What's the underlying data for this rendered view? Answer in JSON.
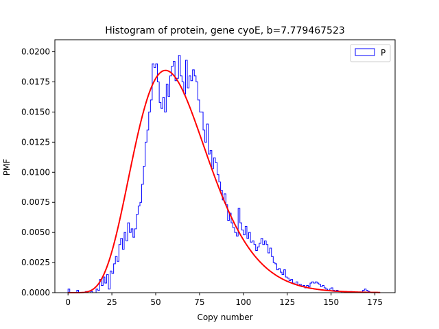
{
  "chart_data": {
    "type": "histogram",
    "title": "Histogram of protein, gene cyoE, b=7.779467523",
    "xlabel": "Copy number",
    "ylabel": "PMF",
    "xlim": [
      -7.5,
      186.5
    ],
    "ylim": [
      0,
      0.021
    ],
    "xticks": [
      0,
      25,
      50,
      75,
      100,
      125,
      150,
      175
    ],
    "yticks": [
      0.0,
      0.0025,
      0.005,
      0.0075,
      0.01,
      0.0125,
      0.015,
      0.0175,
      0.02
    ],
    "ytick_labels": [
      "0.0000",
      "0.0025",
      "0.0050",
      "0.0075",
      "0.0100",
      "0.0125",
      "0.0150",
      "0.0175",
      "0.0200"
    ],
    "legend": {
      "position": "upper right",
      "entries": [
        {
          "label": "P",
          "color": "#0000ff",
          "style": "step"
        }
      ]
    },
    "series": [
      {
        "name": "P",
        "kind": "step",
        "color": "#0000ff",
        "bin_width": 1,
        "points": [
          [
            0,
            0.0003
          ],
          [
            1,
            0.0
          ],
          [
            5,
            0.0002
          ],
          [
            6,
            0.0
          ],
          [
            10,
            0.0001
          ],
          [
            11,
            0.0
          ],
          [
            13,
            0.0001
          ],
          [
            14,
            0.0
          ],
          [
            16,
            0.0003
          ],
          [
            17,
            0.0002
          ],
          [
            18,
            0.0011
          ],
          [
            19,
            0.0006
          ],
          [
            20,
            0.0013
          ],
          [
            21,
            0.0008
          ],
          [
            22,
            0.0015
          ],
          [
            23,
            0.0003
          ],
          [
            24,
            0.0018
          ],
          [
            25,
            0.0016
          ],
          [
            26,
            0.0024
          ],
          [
            27,
            0.003
          ],
          [
            28,
            0.0026
          ],
          [
            29,
            0.004
          ],
          [
            30,
            0.0045
          ],
          [
            31,
            0.0036
          ],
          [
            32,
            0.005
          ],
          [
            33,
            0.0043
          ],
          [
            34,
            0.0058
          ],
          [
            35,
            0.005
          ],
          [
            36,
            0.0053
          ],
          [
            37,
            0.0046
          ],
          [
            38,
            0.0053
          ],
          [
            39,
            0.0065
          ],
          [
            40,
            0.0072
          ],
          [
            41,
            0.0075
          ],
          [
            42,
            0.009
          ],
          [
            43,
            0.0105
          ],
          [
            44,
            0.0125
          ],
          [
            45,
            0.0135
          ],
          [
            46,
            0.015
          ],
          [
            47,
            0.016
          ],
          [
            48,
            0.019
          ],
          [
            49,
            0.0187
          ],
          [
            50,
            0.019
          ],
          [
            51,
            0.0175
          ],
          [
            52,
            0.0158
          ],
          [
            53,
            0.0153
          ],
          [
            54,
            0.0162
          ],
          [
            55,
            0.015
          ],
          [
            56,
            0.0173
          ],
          [
            57,
            0.0163
          ],
          [
            58,
            0.018
          ],
          [
            59,
            0.0188
          ],
          [
            60,
            0.0192
          ],
          [
            61,
            0.0176
          ],
          [
            62,
            0.0178
          ],
          [
            63,
            0.0197
          ],
          [
            64,
            0.018
          ],
          [
            65,
            0.0175
          ],
          [
            66,
            0.0165
          ],
          [
            67,
            0.0193
          ],
          [
            68,
            0.017
          ],
          [
            69,
            0.018
          ],
          [
            70,
            0.0176
          ],
          [
            71,
            0.0185
          ],
          [
            72,
            0.018
          ],
          [
            73,
            0.0175
          ],
          [
            74,
            0.016
          ],
          [
            75,
            0.015
          ],
          [
            76,
            0.015
          ],
          [
            77,
            0.0135
          ],
          [
            78,
            0.0125
          ],
          [
            79,
            0.014
          ],
          [
            80,
            0.0115
          ],
          [
            81,
            0.0118
          ],
          [
            82,
            0.0103
          ],
          [
            83,
            0.0112
          ],
          [
            84,
            0.0108
          ],
          [
            85,
            0.0098
          ],
          [
            86,
            0.0092
          ],
          [
            87,
            0.0085
          ],
          [
            88,
            0.0077
          ],
          [
            89,
            0.0082
          ],
          [
            90,
            0.0073
          ],
          [
            91,
            0.006
          ],
          [
            92,
            0.0066
          ],
          [
            93,
            0.0058
          ],
          [
            94,
            0.0054
          ],
          [
            95,
            0.005
          ],
          [
            96,
            0.0047
          ],
          [
            97,
            0.007
          ],
          [
            98,
            0.0058
          ],
          [
            99,
            0.0052
          ],
          [
            100,
            0.0048
          ],
          [
            101,
            0.0055
          ],
          [
            102,
            0.0045
          ],
          [
            103,
            0.005
          ],
          [
            104,
            0.0042
          ],
          [
            105,
            0.0043
          ],
          [
            106,
            0.004
          ],
          [
            107,
            0.0035
          ],
          [
            108,
            0.0038
          ],
          [
            109,
            0.0041
          ],
          [
            110,
            0.0045
          ],
          [
            111,
            0.004
          ],
          [
            112,
            0.0043
          ],
          [
            113,
            0.004
          ],
          [
            114,
            0.0033
          ],
          [
            115,
            0.0037
          ],
          [
            116,
            0.003
          ],
          [
            117,
            0.0025
          ],
          [
            118,
            0.0024
          ],
          [
            119,
            0.0019
          ],
          [
            120,
            0.002
          ],
          [
            121,
            0.0017
          ],
          [
            122,
            0.0015
          ],
          [
            123,
            0.0019
          ],
          [
            124,
            0.0013
          ],
          [
            125,
            0.0012
          ],
          [
            126,
            0.001
          ],
          [
            127,
            0.0011
          ],
          [
            128,
            0.0008
          ],
          [
            129,
            0.0007
          ],
          [
            130,
            0.0009
          ],
          [
            131,
            0.0006
          ],
          [
            132,
            0.0007
          ],
          [
            133,
            0.0005
          ],
          [
            134,
            0.0006
          ],
          [
            135,
            0.0004
          ],
          [
            136,
            0.0006
          ],
          [
            137,
            0.0005
          ],
          [
            138,
            0.0008
          ],
          [
            139,
            0.0009
          ],
          [
            140,
            0.0008
          ],
          [
            141,
            0.0009
          ],
          [
            142,
            0.0008
          ],
          [
            143,
            0.0007
          ],
          [
            144,
            0.0005
          ],
          [
            145,
            0.0006
          ],
          [
            146,
            0.0004
          ],
          [
            147,
            0.0003
          ],
          [
            148,
            0.0002
          ],
          [
            149,
            0.0003
          ],
          [
            150,
            0.0004
          ],
          [
            151,
            0.0002
          ],
          [
            152,
            0.0001
          ],
          [
            153,
            0.0002
          ],
          [
            154,
            0.0001
          ],
          [
            156,
            0.0
          ],
          [
            158,
            0.0001
          ],
          [
            159,
            0.0
          ],
          [
            161,
            0.0001
          ],
          [
            162,
            0.0
          ],
          [
            168,
            0.0002
          ],
          [
            169,
            0.0003
          ],
          [
            170,
            0.0002
          ],
          [
            171,
            0.0001
          ],
          [
            172,
            0.0
          ],
          [
            178,
            0.0
          ]
        ]
      },
      {
        "name": "",
        "kind": "line",
        "color": "#ff0000",
        "model": "gamma",
        "shape": 7.779467523,
        "scale": 8.2,
        "x_range": [
          0,
          178
        ]
      }
    ]
  }
}
